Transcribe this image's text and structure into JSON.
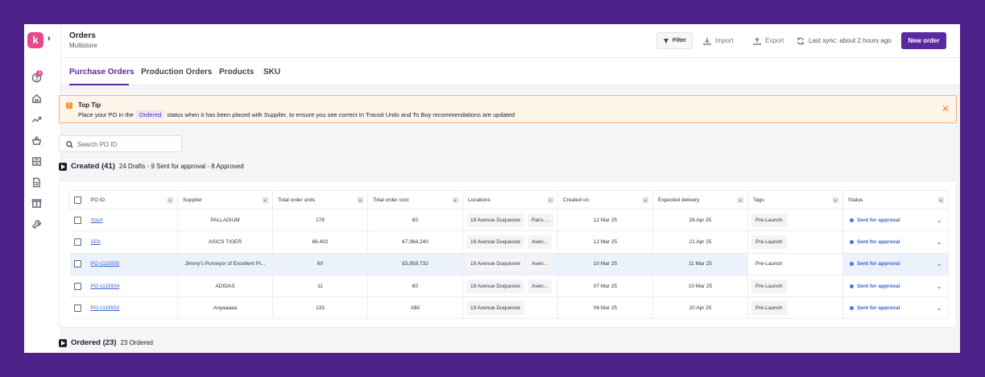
{
  "logo_letter": "k",
  "sidebar": {
    "badge_count": "3",
    "icons": [
      "help-icon",
      "home-icon",
      "trend-icon",
      "basket-icon",
      "inventory-icon",
      "document-icon",
      "box-icon",
      "wrench-icon"
    ]
  },
  "header": {
    "title": "Orders",
    "subtitle": "Multistore",
    "filter_label": "Filter",
    "import_label": "Import",
    "export_label": "Export",
    "sync_label": "Last sync: about 2 hours ago",
    "new_order_label": "New order"
  },
  "tabs": [
    "Purchase Orders",
    "Production Orders",
    "Products",
    "SKU"
  ],
  "tip": {
    "title": "Top Tip",
    "text_before": "Place your PO in the",
    "chip": "Ordered",
    "text_after": "status when it has been placed with Supplier, to ensure you see correct In Transit Units and To Buy recommendations are updated"
  },
  "search": {
    "placeholder": "Search PO ID"
  },
  "sections": {
    "created": {
      "title": "Created (41)",
      "summary": "24 Drafts - 9 Sent for approval - 8 Approved"
    },
    "ordered": {
      "title": "Ordered (23)",
      "summary": "23 Ordered"
    }
  },
  "table": {
    "columns": [
      "PO ID",
      "Supplier",
      "Total order units",
      "Total order cost",
      "Locations",
      "Created on",
      "Expected delivery",
      "Tags",
      "Status"
    ],
    "rows": [
      {
        "po": "Yourt",
        "supplier": "PALLADIUM",
        "units": "178",
        "cost": "€0",
        "loc1": "19 Avenue Duquesne",
        "loc2": "Paris ...",
        "created": "12 Mar 25",
        "delivery": "26 Apr 25",
        "tag": "Pre-Launch",
        "status": "Sent for approval"
      },
      {
        "po": "SEb",
        "supplier": "ASICS TIGER",
        "units": "66,402",
        "cost": "€7,968,240",
        "loc1": "19 Avenue Duquesne",
        "loc2": "Aven...",
        "created": "12 Mar 25",
        "delivery": "21 Apr 25",
        "tag": "Pre-Launch",
        "status": "Sent for approval"
      },
      {
        "po": "PO-1115935",
        "supplier": "Jimmy's Purveyor of Excellent Pr...",
        "units": "60",
        "cost": "£5,958.732",
        "loc1": "19 Avenue Duquesne",
        "loc2": "Aven...",
        "created": "10 Mar 25",
        "delivery": "11 Mar 25",
        "tag": "Pre-Launch",
        "status": "Sent for approval"
      },
      {
        "po": "PO-1115934",
        "supplier": "ADIDAS",
        "units": "11",
        "cost": "€0",
        "loc1": "19 Avenue Duquesne",
        "loc2": "Aven...",
        "created": "07 Mar 25",
        "delivery": "10 Mar 25",
        "tag": "Pre-Launch",
        "status": "Sent for approval"
      },
      {
        "po": "PO-1115932",
        "supplier": "Anyaaaaa",
        "units": "133",
        "cost": "A$0",
        "loc1": "19 Avenue Duquesne",
        "loc2": "",
        "created": "06 Mar 25",
        "delivery": "20 Apr 25",
        "tag": "Pre-Launch",
        "status": "Sent for approval"
      }
    ]
  }
}
